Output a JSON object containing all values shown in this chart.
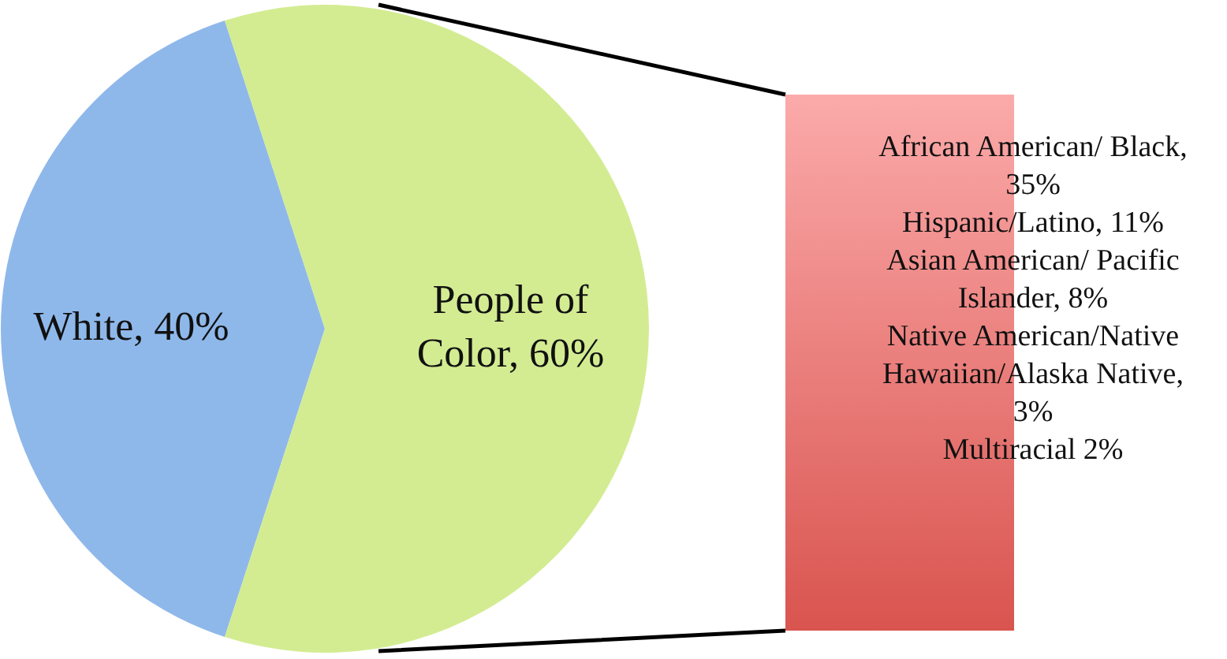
{
  "chart_data": {
    "type": "pie",
    "categories": [
      "White, 40%",
      "People of Color, 60%"
    ],
    "values": [
      40,
      60
    ],
    "colors": [
      "#8fb8ea",
      "#d3ec92"
    ],
    "legend": false,
    "annotations": [
      "African American/ Black, 35%",
      "Hispanic/Latino, 11%",
      "Asian American/ Pacific Islander, 8%",
      "Native American/Native Hawaiian/Alaska Native, 3%",
      "Multiracial 2%"
    ]
  }
}
